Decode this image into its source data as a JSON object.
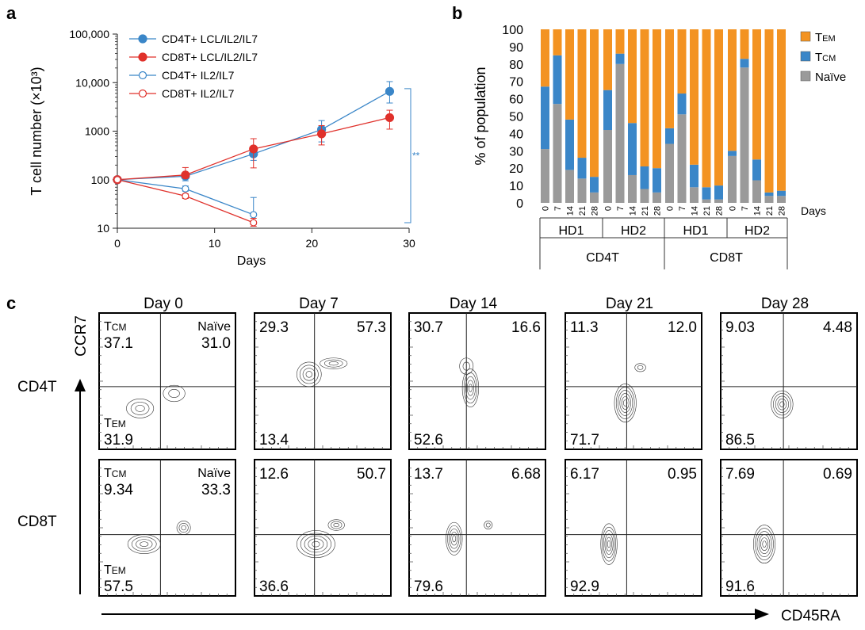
{
  "panel_letters": {
    "a": "a",
    "b": "b",
    "c": "c"
  },
  "chart_data": [
    {
      "id": "a",
      "type": "line",
      "xlabel": "Days",
      "ylabel": "T cell number (×10³)",
      "yscale": "log",
      "xlim": [
        0,
        30
      ],
      "ylim": [
        10,
        100000
      ],
      "xticks": [
        0,
        10,
        20,
        30
      ],
      "xtick_labels": [
        "0",
        "10",
        "20",
        "30"
      ],
      "yticks": [
        10,
        100,
        1000,
        10000,
        100000
      ],
      "ytick_labels": [
        "10",
        "100",
        "1000",
        "10,000",
        "100,000"
      ],
      "series": [
        {
          "name": "CD4T+ LCL/IL2/IL7",
          "color": "#3a86c8",
          "filled": true,
          "x": [
            0,
            7,
            14,
            21,
            28
          ],
          "y": [
            100,
            118,
            340,
            1080,
            6600
          ],
          "err_low": [
            100,
            95,
            250,
            600,
            3800
          ],
          "err_high": [
            100,
            140,
            450,
            1650,
            10500
          ]
        },
        {
          "name": "CD8T+ LCL/IL2/IL7",
          "color": "#e0312b",
          "filled": true,
          "x": [
            0,
            7,
            14,
            21,
            28
          ],
          "y": [
            100,
            125,
            430,
            880,
            1900
          ],
          "err_low": [
            100,
            108,
            175,
            520,
            1100
          ],
          "err_high": [
            100,
            178,
            700,
            1300,
            2700
          ]
        },
        {
          "name": "CD4T+ IL2/IL7",
          "color": "#3a86c8",
          "filled": false,
          "x": [
            0,
            7,
            14
          ],
          "y": [
            100,
            65,
            19
          ],
          "err_low": [
            100,
            58,
            12
          ],
          "err_high": [
            100,
            74,
            43
          ]
        },
        {
          "name": "CD8T+ IL2/IL7",
          "color": "#e0312b",
          "filled": false,
          "x": [
            0,
            7,
            14
          ],
          "y": [
            100,
            46,
            13
          ],
          "err_low": [
            100,
            41,
            11
          ],
          "err_high": [
            100,
            51,
            16
          ]
        }
      ],
      "significance": "**"
    },
    {
      "id": "b",
      "type": "bar",
      "stacked": true,
      "ylabel": "% of population",
      "ylim": [
        0,
        100
      ],
      "yticks": [
        0,
        10,
        20,
        30,
        40,
        50,
        60,
        70,
        80,
        90,
        100
      ],
      "xlabel": "Days",
      "day_labels": [
        "0",
        "7",
        "14",
        "21",
        "28"
      ],
      "legend": [
        {
          "key": "tem",
          "label_main": "T",
          "label_sub": "EM",
          "color": "#f39322"
        },
        {
          "key": "tcm",
          "label_main": "T",
          "label_sub": "CM",
          "color": "#3a86c8"
        },
        {
          "key": "naive",
          "label_main": "Naïve",
          "label_sub": "",
          "color": "#9a9a9a"
        }
      ],
      "groups": [
        {
          "cell": "CD4T",
          "donor": "HD1",
          "days": [
            "0",
            "7",
            "14",
            "21",
            "28"
          ],
          "naive": [
            31,
            57,
            19,
            14,
            6
          ],
          "tcm": [
            36,
            28,
            29,
            12,
            9
          ]
        },
        {
          "cell": "CD4T",
          "donor": "HD2",
          "days": [
            "0",
            "7",
            "14",
            "21",
            "28"
          ],
          "naive": [
            42,
            80,
            16,
            8,
            6
          ],
          "tcm": [
            23,
            6,
            30,
            13,
            14
          ]
        },
        {
          "cell": "CD8T",
          "donor": "HD1",
          "days": [
            "0",
            "7",
            "14",
            "21",
            "28"
          ],
          "naive": [
            34,
            51,
            9,
            2,
            2
          ],
          "tcm": [
            9,
            12,
            13,
            7,
            8
          ]
        },
        {
          "cell": "CD8T",
          "donor": "HD2",
          "days": [
            "0",
            "7",
            "14",
            "21",
            "28"
          ],
          "naive": [
            27,
            78,
            13,
            4,
            4
          ],
          "tcm": [
            3,
            5,
            12,
            2,
            3
          ]
        }
      ],
      "cell_labels": [
        "CD4T",
        "CD8T"
      ]
    },
    {
      "id": "c",
      "type": "contour-flow-cytometry",
      "xlabel": "CD45RA",
      "ylabel": "CCR7",
      "columns": [
        "Day 0",
        "Day 7",
        "Day 14",
        "Day 21",
        "Day 28"
      ],
      "rows": [
        "CD4T",
        "CD8T"
      ],
      "quadrant_labels": {
        "tcm_main": "T",
        "tcm_sub": "CM",
        "tem_main": "T",
        "tem_sub": "EM",
        "naive": "Naïve"
      },
      "panels": [
        [
          {
            "ul": "37.1",
            "ur": "31.0",
            "ll": "31.9",
            "labeled": true
          },
          {
            "ul": "29.3",
            "ur": "57.3",
            "ll": "13.4",
            "labeled": false
          },
          {
            "ul": "30.7",
            "ur": "16.6",
            "ll": "52.6",
            "labeled": false
          },
          {
            "ul": "11.3",
            "ur": "12.0",
            "ll": "71.7",
            "labeled": false
          },
          {
            "ul": "9.03",
            "ur": "4.48",
            "ll": "86.5",
            "labeled": false
          }
        ],
        [
          {
            "ul": "9.34",
            "ur": "33.3",
            "ll": "57.5",
            "labeled": true
          },
          {
            "ul": "12.6",
            "ur": "50.7",
            "ll": "36.6",
            "labeled": false
          },
          {
            "ul": "13.7",
            "ur": "6.68",
            "ll": "79.6",
            "labeled": false
          },
          {
            "ul": "6.17",
            "ur": "0.95",
            "ll": "92.9",
            "labeled": false
          },
          {
            "ul": "7.69",
            "ur": "0.69",
            "ll": "91.6",
            "labeled": false
          }
        ]
      ]
    }
  ]
}
